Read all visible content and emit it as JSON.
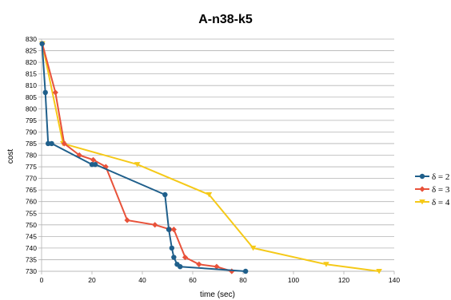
{
  "chart_data": {
    "type": "line",
    "title": "A-n38-k5",
    "xlabel": "time (sec)",
    "ylabel": "cost",
    "xlim": [
      0,
      140
    ],
    "ylim": [
      730,
      830
    ],
    "xticks": [
      0,
      20,
      40,
      60,
      80,
      100,
      120,
      140
    ],
    "yticks": [
      730,
      735,
      740,
      745,
      750,
      755,
      760,
      765,
      770,
      775,
      780,
      785,
      790,
      795,
      800,
      805,
      810,
      815,
      820,
      825,
      830
    ],
    "grid": "horizontal",
    "legend_position": "right",
    "series": [
      {
        "name": "δ = 2",
        "color": "#1f5f8b",
        "marker": "circle",
        "x": [
          0.2,
          1.5,
          2.6,
          4.0,
          20.0,
          21.3,
          49.0,
          50.5,
          51.7,
          52.5,
          53.8,
          55.0,
          81.0
        ],
        "y": [
          828,
          807,
          785,
          785,
          776,
          776,
          763,
          748,
          740,
          736,
          733,
          732,
          730
        ]
      },
      {
        "name": "δ = 3",
        "color": "#e8523a",
        "marker": "diamond",
        "x": [
          0.3,
          5.5,
          9.0,
          15.0,
          20.5,
          25.5,
          34.0,
          45.0,
          51.0,
          52.5,
          57.0,
          62.5,
          69.5,
          75.5
        ],
        "y": [
          828,
          807,
          785,
          780,
          778,
          775,
          752,
          750,
          748,
          748,
          736,
          733,
          732,
          730
        ]
      },
      {
        "name": "δ = 4",
        "color": "#f5c918",
        "marker": "triangle",
        "x": [
          0.3,
          8.5,
          38.0,
          66.5,
          84.0,
          113.0,
          134.0
        ],
        "y": [
          828,
          785,
          776,
          763,
          740,
          733,
          730
        ]
      }
    ]
  }
}
